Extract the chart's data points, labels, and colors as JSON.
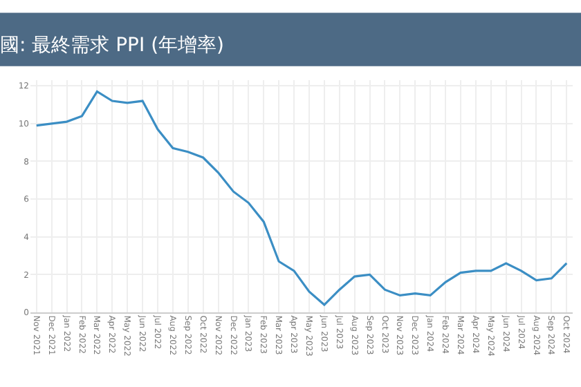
{
  "chart_data": {
    "type": "line",
    "title": "國: 最終需求 PPI (年增率)",
    "categories": [
      "Nov 2021",
      "Dec 2021",
      "Jan 2022",
      "Feb 2022",
      "Mar 2022",
      "Apr 2022",
      "May 2022",
      "Jun 2022",
      "Jul 2022",
      "Aug 2022",
      "Sep 2022",
      "Oct 2022",
      "Nov 2022",
      "Dec 2022",
      "Jan 2023",
      "Feb 2023",
      "Mar 2023",
      "Apr 2023",
      "May 2023",
      "Jun 2023",
      "Jul 2023",
      "Aug 2023",
      "Sep 2023",
      "Oct 2023",
      "Nov 2023",
      "Dec 2023",
      "Jan 2024",
      "Feb 2024",
      "Mar 2024",
      "Apr 2024",
      "May 2024",
      "Jun 2024",
      "Jul 2024",
      "Aug 2024",
      "Sep 2024",
      "Oct 2024"
    ],
    "series": [
      {
        "color": "#3b8ec4",
        "values": [
          9.9,
          10.0,
          10.1,
          10.4,
          11.7,
          11.2,
          11.1,
          11.2,
          9.7,
          8.7,
          8.5,
          8.2,
          7.4,
          6.4,
          5.8,
          4.8,
          2.7,
          2.2,
          1.1,
          0.4,
          1.2,
          1.9,
          2.0,
          1.2,
          0.9,
          1.0,
          0.9,
          1.6,
          2.1,
          2.2,
          2.2,
          2.6,
          2.2,
          1.7,
          1.8,
          2.6
        ]
      }
    ],
    "ylim": [
      0,
      12.3
    ],
    "yticks": [
      0,
      2,
      4,
      6,
      8,
      10,
      12
    ],
    "grid": true,
    "marker": "none",
    "line_style": "solid"
  }
}
